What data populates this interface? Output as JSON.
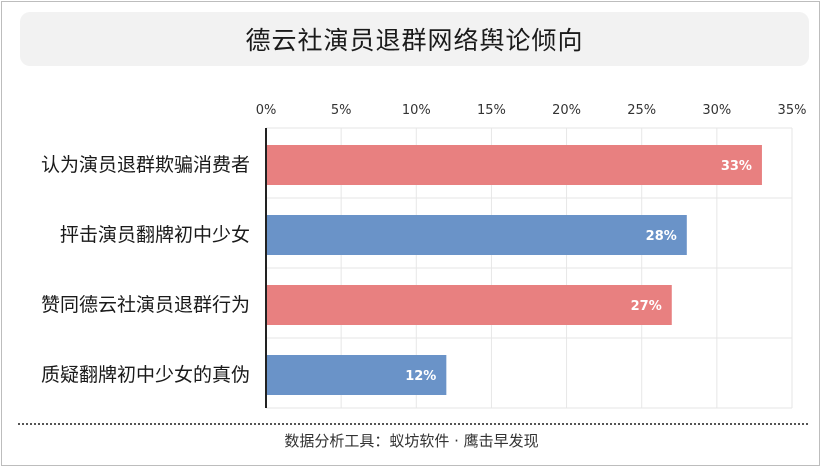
{
  "chart_data": {
    "type": "bar",
    "orientation": "horizontal",
    "title": "德云社演员退群网络舆论倾向",
    "categories": [
      "认为演员退群欺骗消费者",
      "抨击演员翻牌初中少女",
      "赞同德云社演员退群行为",
      "质疑翻牌初中少女的真伪"
    ],
    "values": [
      33,
      28,
      27,
      12
    ],
    "value_labels": [
      "33%",
      "28%",
      "27%",
      "12%"
    ],
    "xlim": [
      0,
      35
    ],
    "ticks": [
      "0%",
      "5%",
      "10%",
      "15%",
      "20%",
      "25%",
      "30%",
      "35%"
    ],
    "tick_values": [
      0,
      5,
      10,
      15,
      20,
      25,
      30,
      35
    ],
    "axis_position": "top",
    "grid": true,
    "colors": [
      "#e88080",
      "#6a93c8",
      "#e88080",
      "#6a93c8"
    ]
  },
  "footer": "数据分析工具：蚁坊软件 · 鹰击早发现"
}
